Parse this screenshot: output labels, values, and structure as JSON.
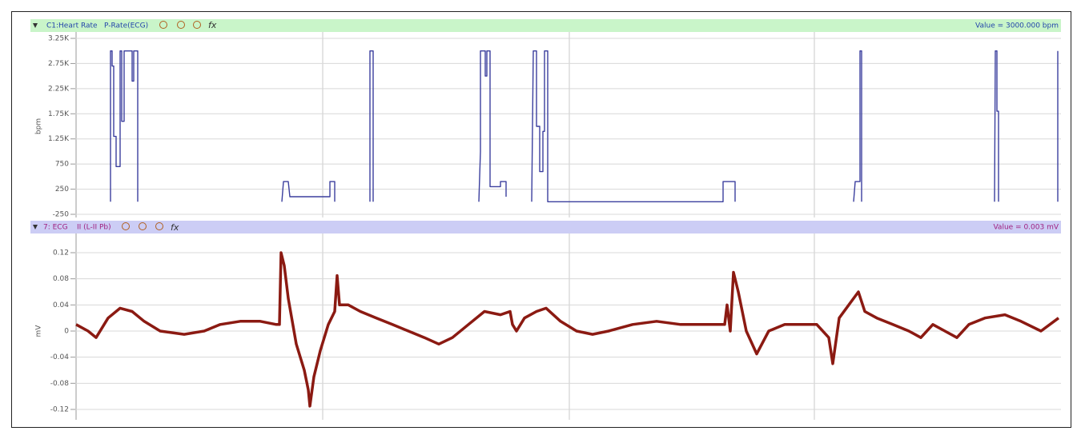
{
  "chart_data": [
    {
      "type": "line",
      "header_channel": "C1:Heart Rate",
      "header_source": "P-Rate(ECG)",
      "header_value": "Value = 3000.000 bpm",
      "function_icon": "fx",
      "ylabel": "bpm",
      "color": "#3b3f9e",
      "ylim": [
        -250,
        3250
      ],
      "yticks": [
        {
          "value": 3250,
          "label": "3.25K"
        },
        {
          "value": 2750,
          "label": "2.75K"
        },
        {
          "value": 2250,
          "label": "2.25K"
        },
        {
          "value": 1750,
          "label": "1.75K"
        },
        {
          "value": 1250,
          "label": "1.25K"
        },
        750,
        250,
        -250
      ],
      "grid": true,
      "xlim": [
        95,
        1325
      ],
      "x": [
        138,
        138,
        140,
        140,
        142,
        142,
        145,
        145,
        150,
        150,
        152,
        152,
        155,
        155,
        165,
        165,
        167,
        167,
        172,
        172,
        173,
        352,
        354,
        360,
        362,
        412,
        412,
        418,
        418,
        419,
        462,
        462,
        466,
        466,
        467,
        598,
        600,
        600,
        606,
        606,
        608,
        608,
        612,
        612,
        625,
        625,
        632,
        632,
        633,
        664,
        666,
        670,
        670,
        674,
        674,
        678,
        678,
        680,
        680,
        684,
        684,
        903,
        903,
        918,
        918,
        919,
        1066,
        1068,
        1074,
        1074,
        1076,
        1076,
        1077,
        1242,
        1243,
        1245,
        1245,
        1247,
        1247,
        1248,
        1321,
        1321
      ],
      "values": [
        0,
        3000,
        3000,
        2700,
        2700,
        1300,
        1300,
        700,
        700,
        3000,
        3000,
        1600,
        1600,
        3000,
        3000,
        2400,
        2400,
        3000,
        3000,
        0,
        null,
        0,
        400,
        400,
        100,
        100,
        400,
        400,
        0,
        null,
        0,
        3000,
        3000,
        0,
        null,
        0,
        1000,
        3000,
        3000,
        2500,
        2500,
        3000,
        3000,
        300,
        300,
        400,
        400,
        100,
        null,
        0,
        3000,
        3000,
        1500,
        1500,
        600,
        600,
        1400,
        1400,
        3000,
        3000,
        0,
        0,
        400,
        400,
        0,
        null,
        0,
        400,
        400,
        3000,
        3000,
        0,
        null,
        0,
        3000,
        3000,
        1800,
        1800,
        0,
        null,
        0,
        3000
      ]
    },
    {
      "type": "line",
      "header_channel": "7: ECG",
      "header_source": "II (L-II Pb)",
      "header_value": "Value = 0.003 mV",
      "function_icon": "fx",
      "ylabel": "mV",
      "color": "#8b1a12",
      "ylim": [
        -0.12,
        0.12
      ],
      "yticks": [
        0.12,
        0.08,
        0.04,
        0,
        -0.04,
        -0.08,
        -0.12
      ],
      "grid": true,
      "xlim": [
        95,
        1325
      ],
      "x": [
        95,
        110,
        120,
        135,
        150,
        165,
        180,
        200,
        230,
        255,
        275,
        300,
        325,
        345,
        349,
        351,
        355,
        360,
        370,
        380,
        385,
        387,
        392,
        400,
        410,
        418,
        421,
        424,
        435,
        450,
        470,
        490,
        510,
        530,
        548,
        565,
        585,
        605,
        625,
        637,
        640,
        645,
        655,
        670,
        682,
        700,
        720,
        740,
        760,
        790,
        820,
        850,
        880,
        905,
        908,
        912,
        916,
        922,
        932,
        945,
        960,
        980,
        1000,
        1020,
        1035,
        1040,
        1048,
        1060,
        1072,
        1080,
        1095,
        1115,
        1135,
        1150,
        1165,
        1180,
        1195,
        1210,
        1230,
        1255,
        1275,
        1300,
        1322
      ],
      "values": [
        0.01,
        0.0,
        -0.01,
        0.02,
        0.035,
        0.03,
        0.015,
        0.0,
        -0.005,
        0.0,
        0.01,
        0.015,
        0.015,
        0.01,
        0.01,
        0.12,
        0.1,
        0.05,
        -0.02,
        -0.06,
        -0.09,
        -0.115,
        -0.07,
        -0.03,
        0.01,
        0.03,
        0.085,
        0.04,
        0.04,
        0.03,
        0.02,
        0.01,
        0.0,
        -0.01,
        -0.02,
        -0.01,
        0.01,
        0.03,
        0.025,
        0.03,
        0.01,
        0.0,
        0.02,
        0.03,
        0.035,
        0.015,
        0.0,
        -0.005,
        0.0,
        0.01,
        0.015,
        0.01,
        0.01,
        0.01,
        0.04,
        0.0,
        0.09,
        0.06,
        0.0,
        -0.035,
        0.0,
        0.01,
        0.01,
        0.01,
        -0.01,
        -0.05,
        0.02,
        0.04,
        0.06,
        0.03,
        0.02,
        0.01,
        0.0,
        -0.01,
        0.01,
        0.0,
        -0.01,
        0.01,
        0.02,
        0.025,
        0.015,
        0.0,
        0.02
      ]
    }
  ]
}
